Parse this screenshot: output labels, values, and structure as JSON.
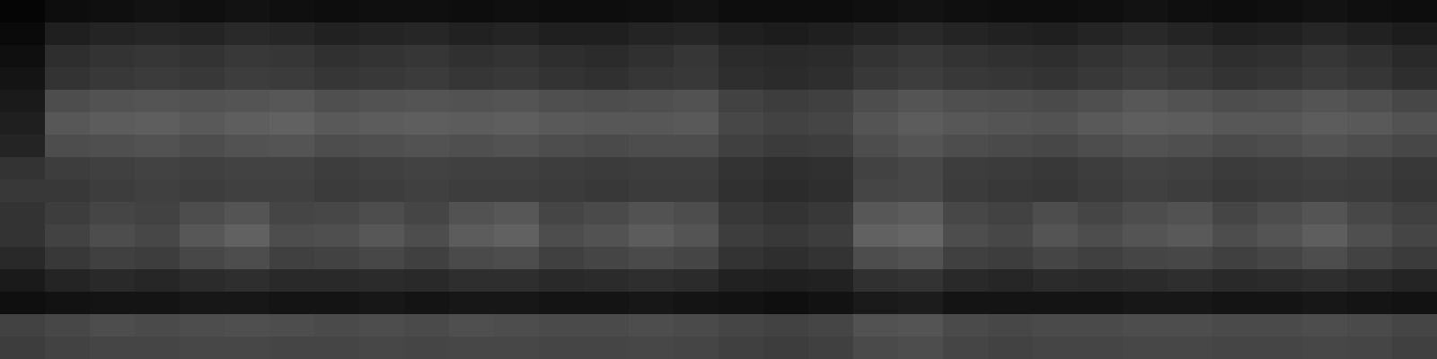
{
  "chart_data": {
    "type": "heatmap",
    "tick_labels": false,
    "zlim": [
      0,
      1
    ],
    "colors": [
      "#000000",
      "#ffffff"
    ],
    "values": [
      [
        0.02,
        0.05,
        0.06,
        0.07,
        0.06,
        0.07,
        0.06,
        0.05,
        0.06,
        0.06,
        0.05,
        0.06,
        0.05,
        0.05,
        0.06,
        0.07,
        0.05,
        0.05,
        0.05,
        0.06,
        0.07,
        0.06,
        0.05,
        0.05,
        0.06,
        0.07,
        0.06,
        0.05,
        0.06,
        0.07,
        0.06,
        0.05
      ],
      [
        0.04,
        0.12,
        0.14,
        0.15,
        0.14,
        0.16,
        0.15,
        0.13,
        0.14,
        0.15,
        0.13,
        0.14,
        0.12,
        0.12,
        0.14,
        0.15,
        0.12,
        0.11,
        0.12,
        0.14,
        0.16,
        0.14,
        0.13,
        0.12,
        0.14,
        0.16,
        0.14,
        0.12,
        0.13,
        0.15,
        0.13,
        0.11
      ],
      [
        0.06,
        0.18,
        0.2,
        0.21,
        0.2,
        0.22,
        0.21,
        0.19,
        0.2,
        0.21,
        0.19,
        0.2,
        0.18,
        0.17,
        0.19,
        0.21,
        0.17,
        0.16,
        0.17,
        0.2,
        0.22,
        0.2,
        0.19,
        0.18,
        0.2,
        0.22,
        0.2,
        0.18,
        0.19,
        0.21,
        0.19,
        0.16
      ],
      [
        0.08,
        0.2,
        0.22,
        0.23,
        0.22,
        0.24,
        0.23,
        0.21,
        0.22,
        0.23,
        0.21,
        0.22,
        0.2,
        0.19,
        0.21,
        0.22,
        0.18,
        0.17,
        0.18,
        0.22,
        0.24,
        0.22,
        0.21,
        0.2,
        0.22,
        0.24,
        0.22,
        0.2,
        0.21,
        0.23,
        0.21,
        0.18
      ],
      [
        0.1,
        0.3,
        0.32,
        0.33,
        0.32,
        0.33,
        0.34,
        0.31,
        0.32,
        0.33,
        0.32,
        0.33,
        0.31,
        0.3,
        0.31,
        0.32,
        0.26,
        0.24,
        0.25,
        0.3,
        0.33,
        0.31,
        0.3,
        0.29,
        0.31,
        0.34,
        0.32,
        0.3,
        0.31,
        0.33,
        0.31,
        0.28
      ],
      [
        0.12,
        0.34,
        0.36,
        0.37,
        0.35,
        0.37,
        0.38,
        0.35,
        0.36,
        0.37,
        0.36,
        0.37,
        0.35,
        0.34,
        0.34,
        0.35,
        0.28,
        0.26,
        0.27,
        0.33,
        0.36,
        0.34,
        0.33,
        0.32,
        0.35,
        0.37,
        0.36,
        0.34,
        0.34,
        0.36,
        0.35,
        0.32
      ],
      [
        0.14,
        0.3,
        0.31,
        0.32,
        0.3,
        0.32,
        0.33,
        0.3,
        0.31,
        0.32,
        0.31,
        0.32,
        0.3,
        0.29,
        0.3,
        0.3,
        0.25,
        0.23,
        0.24,
        0.3,
        0.33,
        0.3,
        0.29,
        0.28,
        0.3,
        0.32,
        0.31,
        0.29,
        0.3,
        0.32,
        0.3,
        0.28
      ],
      [
        0.2,
        0.24,
        0.25,
        0.26,
        0.25,
        0.26,
        0.26,
        0.24,
        0.25,
        0.26,
        0.25,
        0.25,
        0.24,
        0.23,
        0.24,
        0.24,
        0.2,
        0.18,
        0.19,
        0.26,
        0.28,
        0.24,
        0.23,
        0.22,
        0.24,
        0.26,
        0.25,
        0.23,
        0.24,
        0.25,
        0.24,
        0.22
      ],
      [
        0.22,
        0.22,
        0.24,
        0.25,
        0.24,
        0.25,
        0.25,
        0.23,
        0.24,
        0.25,
        0.24,
        0.24,
        0.23,
        0.22,
        0.23,
        0.23,
        0.19,
        0.17,
        0.18,
        0.27,
        0.28,
        0.23,
        0.22,
        0.21,
        0.23,
        0.25,
        0.24,
        0.22,
        0.23,
        0.24,
        0.23,
        0.21
      ],
      [
        0.2,
        0.24,
        0.27,
        0.26,
        0.3,
        0.33,
        0.27,
        0.28,
        0.3,
        0.27,
        0.32,
        0.34,
        0.27,
        0.29,
        0.32,
        0.3,
        0.22,
        0.2,
        0.22,
        0.34,
        0.36,
        0.28,
        0.26,
        0.3,
        0.27,
        0.3,
        0.32,
        0.27,
        0.3,
        0.33,
        0.28,
        0.25
      ],
      [
        0.2,
        0.26,
        0.3,
        0.28,
        0.34,
        0.38,
        0.3,
        0.31,
        0.34,
        0.3,
        0.36,
        0.38,
        0.3,
        0.32,
        0.36,
        0.33,
        0.24,
        0.22,
        0.24,
        0.38,
        0.4,
        0.3,
        0.28,
        0.33,
        0.3,
        0.33,
        0.35,
        0.3,
        0.33,
        0.37,
        0.31,
        0.27
      ],
      [
        0.16,
        0.22,
        0.25,
        0.24,
        0.28,
        0.3,
        0.25,
        0.26,
        0.28,
        0.25,
        0.29,
        0.3,
        0.25,
        0.27,
        0.29,
        0.27,
        0.2,
        0.18,
        0.2,
        0.3,
        0.32,
        0.25,
        0.24,
        0.27,
        0.25,
        0.27,
        0.28,
        0.25,
        0.27,
        0.3,
        0.26,
        0.23
      ],
      [
        0.1,
        0.14,
        0.16,
        0.15,
        0.17,
        0.18,
        0.16,
        0.16,
        0.17,
        0.16,
        0.18,
        0.18,
        0.16,
        0.17,
        0.18,
        0.17,
        0.13,
        0.12,
        0.13,
        0.19,
        0.2,
        0.16,
        0.15,
        0.17,
        0.16,
        0.17,
        0.18,
        0.16,
        0.17,
        0.18,
        0.16,
        0.14
      ],
      [
        0.06,
        0.07,
        0.08,
        0.08,
        0.09,
        0.09,
        0.08,
        0.08,
        0.09,
        0.08,
        0.09,
        0.09,
        0.08,
        0.08,
        0.09,
        0.08,
        0.07,
        0.06,
        0.07,
        0.1,
        0.11,
        0.08,
        0.08,
        0.08,
        0.08,
        0.09,
        0.09,
        0.08,
        0.08,
        0.09,
        0.08,
        0.07
      ],
      [
        0.26,
        0.28,
        0.3,
        0.29,
        0.3,
        0.31,
        0.3,
        0.29,
        0.3,
        0.29,
        0.31,
        0.3,
        0.29,
        0.29,
        0.3,
        0.29,
        0.27,
        0.26,
        0.27,
        0.32,
        0.33,
        0.29,
        0.28,
        0.29,
        0.29,
        0.3,
        0.3,
        0.29,
        0.29,
        0.3,
        0.29,
        0.27
      ],
      [
        0.24,
        0.26,
        0.27,
        0.27,
        0.28,
        0.28,
        0.27,
        0.27,
        0.28,
        0.27,
        0.28,
        0.28,
        0.27,
        0.27,
        0.28,
        0.27,
        0.25,
        0.24,
        0.25,
        0.29,
        0.3,
        0.27,
        0.26,
        0.27,
        0.27,
        0.28,
        0.28,
        0.27,
        0.27,
        0.28,
        0.27,
        0.25
      ]
    ]
  }
}
